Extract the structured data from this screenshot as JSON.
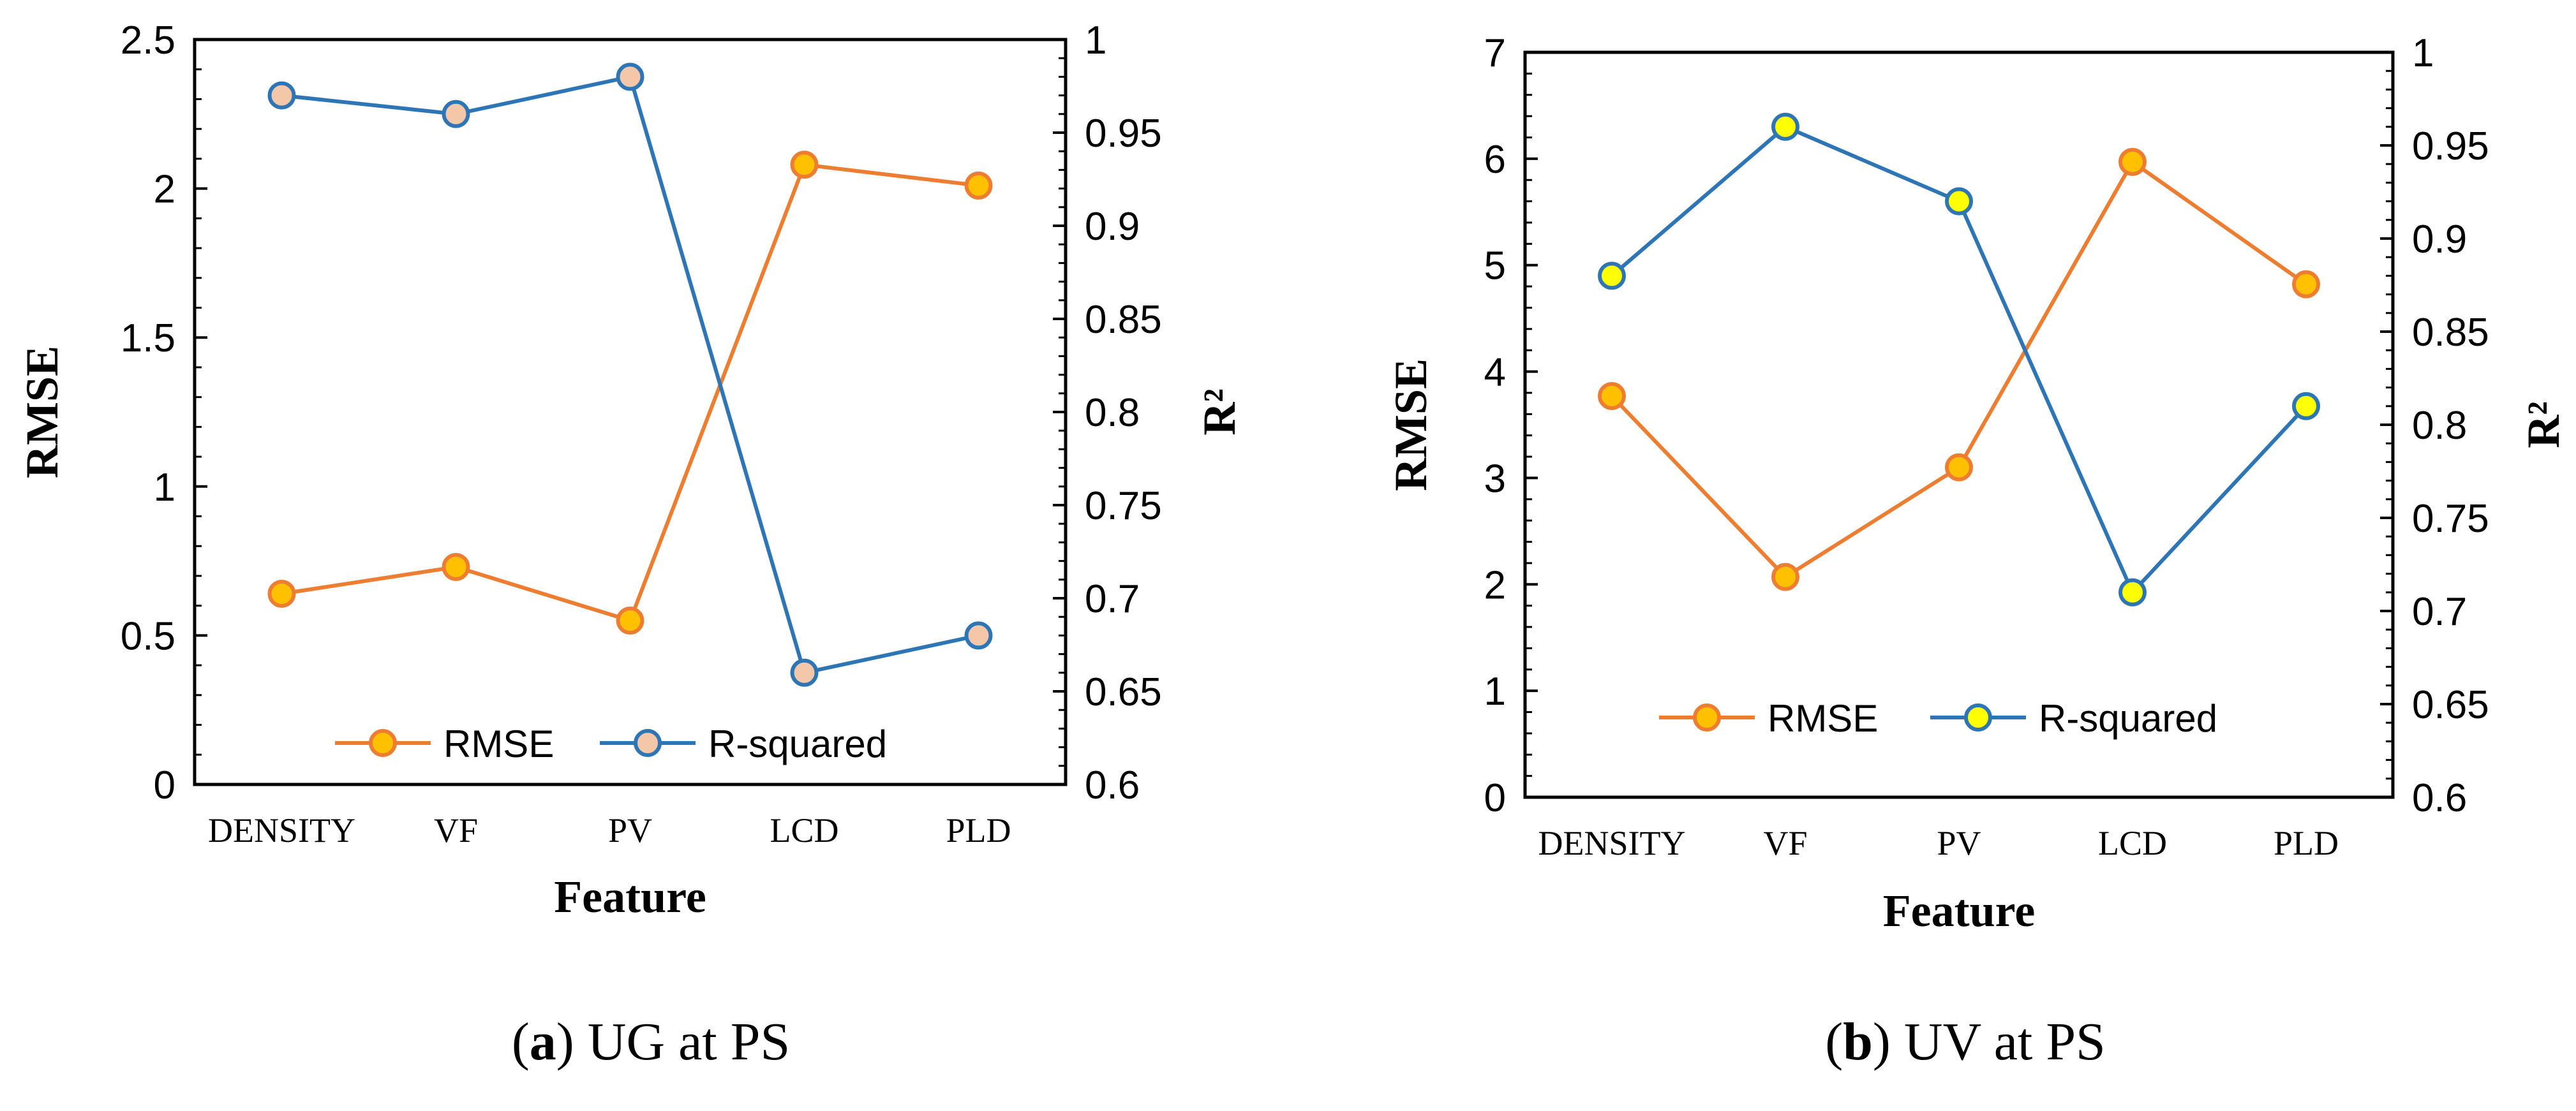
{
  "chart_data": [
    {
      "type": "line",
      "panel": "a",
      "caption_letter": "a",
      "caption_text": " UG at PS",
      "xlabel": "Feature",
      "ylabel_left": "RMSE",
      "ylabel_right": "R²",
      "categories": [
        "DENSITY",
        "VF",
        "PV",
        "LCD",
        "PLD"
      ],
      "ylim_left": [
        0,
        2.5
      ],
      "ylim_right": [
        0.6,
        1.0
      ],
      "yticks_left": [
        "0",
        "0.5",
        "1",
        "1.5",
        "2",
        "2.5"
      ],
      "yticks_right": [
        "0.6",
        "0.65",
        "0.7",
        "0.75",
        "0.8",
        "0.85",
        "0.9",
        "0.95",
        "1"
      ],
      "series": [
        {
          "name": "RMSE",
          "axis": "left",
          "values": [
            0.64,
            0.73,
            0.55,
            2.08,
            2.01
          ],
          "line_color": "#ED7D31",
          "marker_fill": "#FFC000",
          "marker_edge": "#ED7D31"
        },
        {
          "name": "R-squared",
          "axis": "right",
          "values": [
            0.97,
            0.96,
            0.98,
            0.66,
            0.68
          ],
          "line_color": "#2E75B6",
          "marker_fill": "#F4C7A8",
          "marker_edge": "#2E75B6"
        }
      ],
      "legend": [
        "RMSE",
        "R-squared"
      ]
    },
    {
      "type": "line",
      "panel": "b",
      "caption_letter": "b",
      "caption_text": " UV at PS",
      "xlabel": "Feature",
      "ylabel_left": "RMSE",
      "ylabel_right": "R²",
      "categories": [
        "DENSITY",
        "VF",
        "PV",
        "LCD",
        "PLD"
      ],
      "ylim_left": [
        0,
        7
      ],
      "ylim_right": [
        0.6,
        1.0
      ],
      "yticks_left": [
        "0",
        "1",
        "2",
        "3",
        "4",
        "5",
        "6",
        "7"
      ],
      "yticks_right": [
        "0.6",
        "0.65",
        "0.7",
        "0.75",
        "0.8",
        "0.85",
        "0.9",
        "0.95",
        "1"
      ],
      "series": [
        {
          "name": "RMSE",
          "axis": "left",
          "values": [
            3.77,
            2.07,
            3.1,
            5.97,
            4.82
          ],
          "line_color": "#ED7D31",
          "marker_fill": "#FFC000",
          "marker_edge": "#ED7D31"
        },
        {
          "name": "R-squared",
          "axis": "right",
          "values": [
            0.88,
            0.96,
            0.92,
            0.71,
            0.81
          ],
          "line_color": "#2E75B6",
          "marker_fill": "#FFFF00",
          "marker_edge": "#2E75B6"
        }
      ],
      "legend": [
        "RMSE",
        "R-squared"
      ]
    }
  ]
}
